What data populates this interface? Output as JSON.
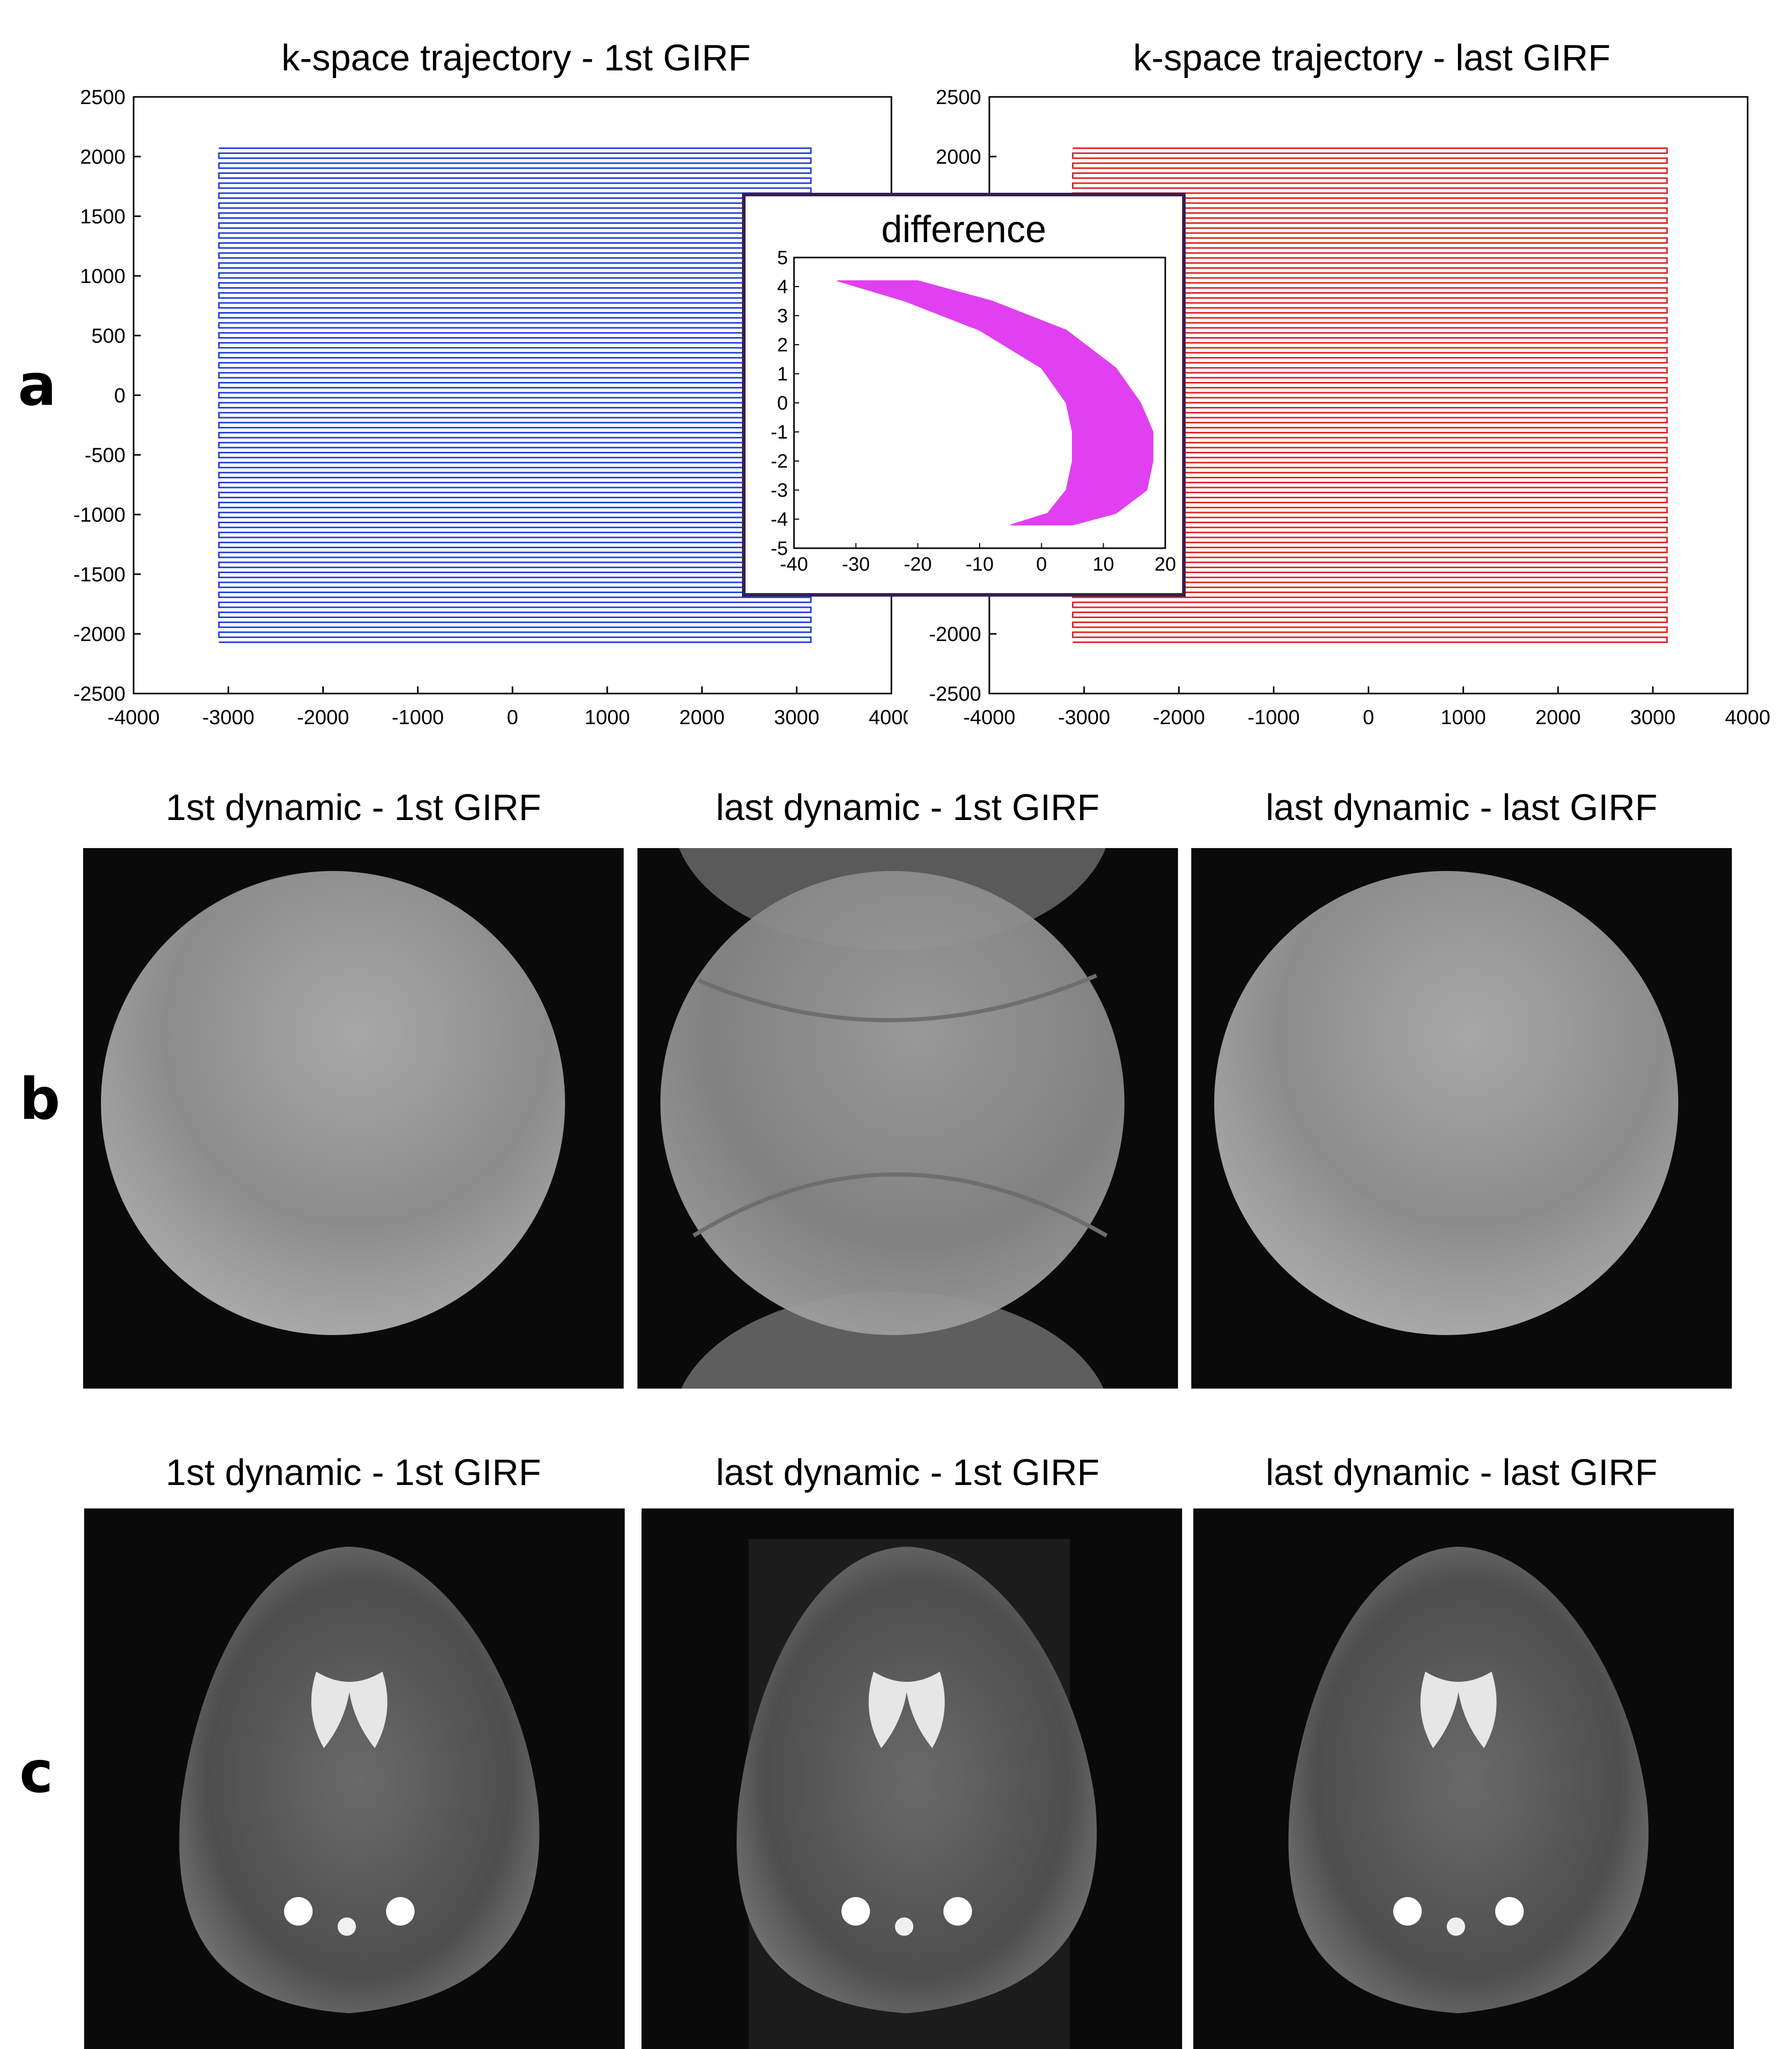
{
  "panels": {
    "a": "a",
    "b": "b",
    "c": "c"
  },
  "chart_data": [
    {
      "type": "line",
      "title": "k-space trajectory - 1st GIRF",
      "xlim": [
        -4000,
        4000
      ],
      "ylim": [
        -2500,
        2500
      ],
      "xticks": [
        "-4000",
        "-3000",
        "-2000",
        "-1000",
        "0",
        "1000",
        "2000",
        "3000",
        "4000"
      ],
      "yticks": [
        "2500",
        "2000",
        "1500",
        "1000",
        "500",
        "0",
        "-500",
        "-1000",
        "-1500",
        "-2000",
        "-2500"
      ],
      "series": [
        {
          "color": "#1f3fd6",
          "pattern": "EPI zig-zag",
          "x_range": [
            -3100,
            3150
          ],
          "y_range": [
            -2070,
            2070
          ],
          "lines": 100
        }
      ]
    },
    {
      "type": "line",
      "title": "k-space trajectory - last GIRF",
      "xlim": [
        -4000,
        4000
      ],
      "ylim": [
        -2500,
        2500
      ],
      "xticks": [
        "-4000",
        "-3000",
        "-2000",
        "-1000",
        "0",
        "1000",
        "2000",
        "3000",
        "4000"
      ],
      "yticks": [
        "2500",
        "2000",
        "1500",
        "1000",
        "500",
        "0",
        "-500",
        "-1000",
        "-1500",
        "-2000",
        "-2500"
      ],
      "series": [
        {
          "color": "#e02020",
          "pattern": "EPI zig-zag",
          "x_range": [
            -3120,
            3150
          ],
          "y_range": [
            -2070,
            2070
          ],
          "lines": 100
        }
      ]
    },
    {
      "type": "area",
      "title": "difference",
      "xlim": [
        -40,
        20
      ],
      "ylim": [
        -5,
        5
      ],
      "xticks": [
        "-40",
        "-30",
        "-20",
        "-10",
        "0",
        "10",
        "20"
      ],
      "yticks": [
        "5",
        "4",
        "3",
        "2",
        "1",
        "0",
        "-1",
        "-2",
        "-3",
        "-4",
        "-5"
      ],
      "series": [
        {
          "color": "#e040f0",
          "left": [
            [
              -33,
              4.2
            ],
            [
              -22,
              3.5
            ],
            [
              -10,
              2.5
            ],
            [
              0,
              1.2
            ],
            [
              4,
              0
            ],
            [
              5,
              -1
            ],
            [
              5,
              -2
            ],
            [
              4,
              -3
            ],
            [
              1,
              -3.8
            ],
            [
              -5,
              -4.2
            ]
          ],
          "right": [
            [
              -20,
              4.2
            ],
            [
              -8,
              3.5
            ],
            [
              4,
              2.5
            ],
            [
              12,
              1.2
            ],
            [
              16,
              0
            ],
            [
              18,
              -1
            ],
            [
              18,
              -2
            ],
            [
              17,
              -3
            ],
            [
              12,
              -3.8
            ],
            [
              5,
              -4.2
            ]
          ]
        }
      ]
    }
  ],
  "row_b": {
    "titles": [
      "1st dynamic - 1st GIRF",
      "last dynamic - 1st GIRF",
      "last dynamic - last GIRF"
    ]
  },
  "row_c": {
    "titles": [
      "1st dynamic - 1st GIRF",
      "last dynamic - 1st GIRF",
      "last dynamic - last GIRF"
    ]
  }
}
